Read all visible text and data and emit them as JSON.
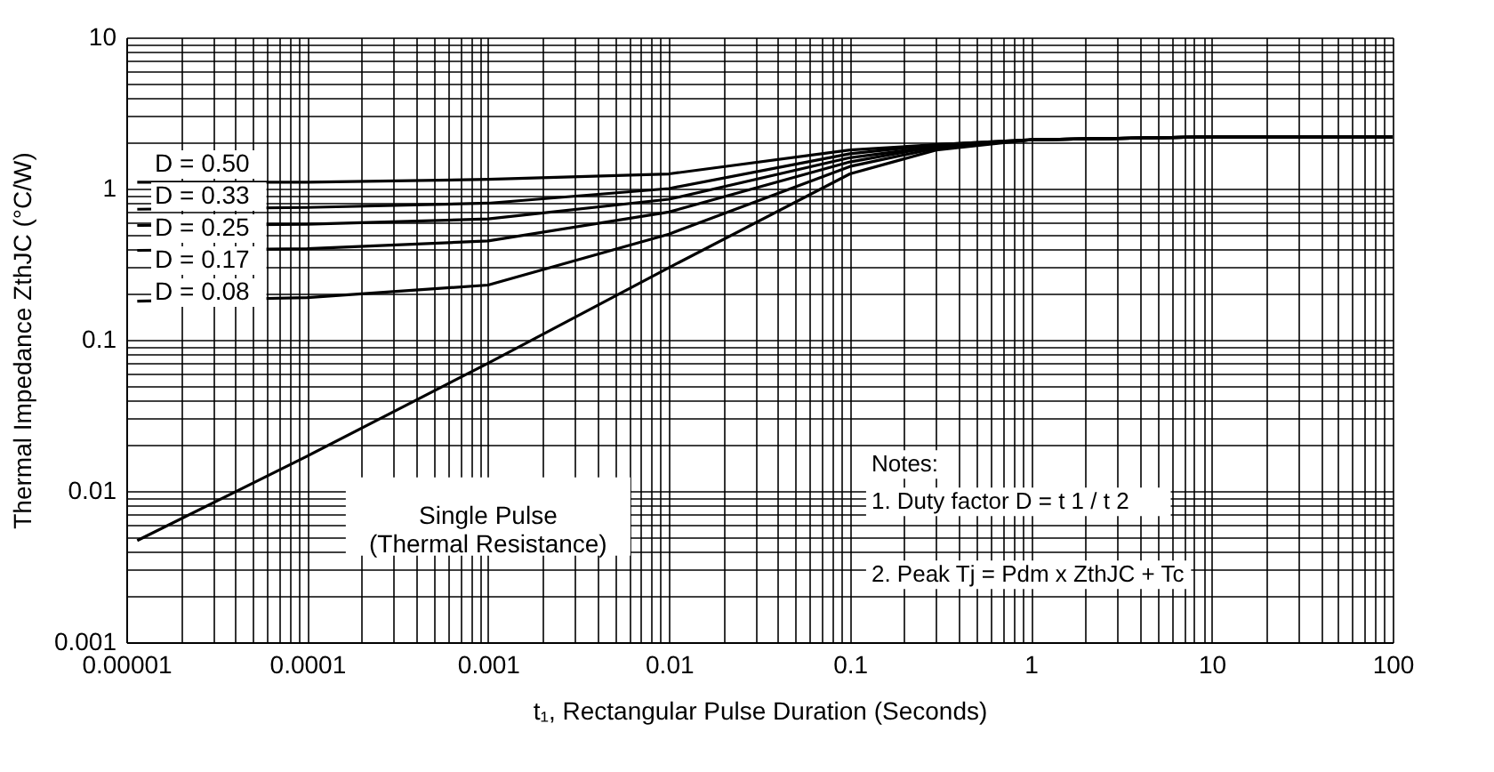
{
  "chart_data": {
    "type": "line",
    "xlabel": "t₁, Rectangular Pulse Duration (Seconds)",
    "ylabel": "Thermal Impedance ZthJC (°C/W)",
    "log": "xy",
    "grid": true,
    "legend": false,
    "line_style": "solid",
    "marker": "none",
    "xlim": [
      1e-05,
      100
    ],
    "ylim": [
      0.001,
      10
    ],
    "xticks": [
      {
        "value": 1e-05,
        "label": "0.00001"
      },
      {
        "value": 2e-05,
        "label": null
      },
      {
        "value": 3e-05,
        "label": null
      },
      {
        "value": 4e-05,
        "label": null
      },
      {
        "value": 5e-05,
        "label": null
      },
      {
        "value": 6e-05,
        "label": null
      },
      {
        "value": 7e-05,
        "label": null
      },
      {
        "value": 8e-05,
        "label": null
      },
      {
        "value": 9e-05,
        "label": null
      },
      0.0001,
      {
        "value": 0.0002,
        "label": null
      },
      {
        "value": 0.0003,
        "label": null
      },
      {
        "value": 0.0004,
        "label": null
      },
      {
        "value": 0.0005,
        "label": null
      },
      {
        "value": 0.0006,
        "label": null
      },
      {
        "value": 0.0007,
        "label": null
      },
      {
        "value": 0.0008,
        "label": null
      },
      {
        "value": 0.0009,
        "label": null
      },
      0.001,
      {
        "value": 0.002,
        "label": null
      },
      {
        "value": 0.003,
        "label": null
      },
      {
        "value": 0.004,
        "label": null
      },
      {
        "value": 0.005,
        "label": null
      },
      {
        "value": 0.006,
        "label": null
      },
      {
        "value": 0.007,
        "label": null
      },
      {
        "value": 0.008,
        "label": null
      },
      {
        "value": 0.009,
        "label": null
      },
      0.01,
      {
        "value": 0.02,
        "label": null
      },
      {
        "value": 0.03,
        "label": null
      },
      {
        "value": 0.04,
        "label": null
      },
      {
        "value": 0.05,
        "label": null
      },
      {
        "value": 0.06,
        "label": null
      },
      {
        "value": 0.07,
        "label": null
      },
      {
        "value": 0.08,
        "label": null
      },
      {
        "value": 0.09,
        "label": null
      },
      0.1,
      {
        "value": 0.2,
        "label": null
      },
      {
        "value": 0.3,
        "label": null
      },
      {
        "value": 0.4,
        "label": null
      },
      {
        "value": 0.5,
        "label": null
      },
      {
        "value": 0.6,
        "label": null
      },
      {
        "value": 0.7,
        "label": null
      },
      {
        "value": 0.8,
        "label": null
      },
      {
        "value": 0.9,
        "label": null
      },
      1,
      {
        "value": 2,
        "label": null
      },
      {
        "value": 3,
        "label": null
      },
      {
        "value": 4,
        "label": null
      },
      {
        "value": 5,
        "label": null
      },
      {
        "value": 6,
        "label": null
      },
      {
        "value": 7,
        "label": null
      },
      {
        "value": 8,
        "label": null
      },
      {
        "value": 9,
        "label": null
      },
      10,
      {
        "value": 20,
        "label": null
      },
      {
        "value": 30,
        "label": null
      },
      {
        "value": 40,
        "label": null
      },
      {
        "value": 50,
        "label": null
      },
      {
        "value": 60,
        "label": null
      },
      {
        "value": 70,
        "label": null
      },
      {
        "value": 80,
        "label": null
      },
      {
        "value": 90,
        "label": null
      },
      100
    ],
    "yticks": [
      0.001,
      {
        "value": 0.002,
        "label": null
      },
      {
        "value": 0.003,
        "label": null
      },
      {
        "value": 0.004,
        "label": null
      },
      {
        "value": 0.005,
        "label": null
      },
      {
        "value": 0.006,
        "label": null
      },
      {
        "value": 0.007,
        "label": null
      },
      {
        "value": 0.008,
        "label": null
      },
      {
        "value": 0.009,
        "label": null
      },
      0.01,
      {
        "value": 0.02,
        "label": null
      },
      {
        "value": 0.03,
        "label": null
      },
      {
        "value": 0.04,
        "label": null
      },
      {
        "value": 0.05,
        "label": null
      },
      {
        "value": 0.06,
        "label": null
      },
      {
        "value": 0.07,
        "label": null
      },
      {
        "value": 0.08,
        "label": null
      },
      {
        "value": 0.09,
        "label": null
      },
      0.1,
      {
        "value": 0.2,
        "label": null
      },
      {
        "value": 0.3,
        "label": null
      },
      {
        "value": 0.4,
        "label": null
      },
      {
        "value": 0.5,
        "label": null
      },
      {
        "value": 0.6,
        "label": null
      },
      {
        "value": 0.7,
        "label": null
      },
      {
        "value": 0.8,
        "label": null
      },
      {
        "value": 0.9,
        "label": null
      },
      1,
      {
        "value": 2,
        "label": null
      },
      {
        "value": 3,
        "label": null
      },
      {
        "value": 4,
        "label": null
      },
      {
        "value": 5,
        "label": null
      },
      {
        "value": 6,
        "label": null
      },
      {
        "value": 7,
        "label": null
      },
      {
        "value": 8,
        "label": null
      },
      {
        "value": 9,
        "label": null
      },
      10
    ],
    "x": [
      1.15e-05,
      0.0001,
      0.001,
      0.01,
      0.1,
      0.3,
      1,
      10,
      100
    ],
    "series": [
      {
        "name": "D = 0.50",
        "color": "#000000",
        "values": [
          1.1,
          1.1,
          1.15,
          1.25,
          1.8,
          1.95,
          2.1,
          2.2,
          2.2
        ]
      },
      {
        "name": "D = 0.33",
        "color": "#000000",
        "values": [
          0.73,
          0.75,
          0.8,
          1.0,
          1.7,
          1.95,
          2.1,
          2.2,
          2.2
        ]
      },
      {
        "name": "D = 0.25",
        "color": "#000000",
        "values": [
          0.57,
          0.58,
          0.63,
          0.85,
          1.6,
          1.9,
          2.1,
          2.2,
          2.2
        ]
      },
      {
        "name": "D = 0.17",
        "color": "#000000",
        "values": [
          0.39,
          0.4,
          0.45,
          0.7,
          1.5,
          1.9,
          2.1,
          2.2,
          2.2
        ]
      },
      {
        "name": "D = 0.08",
        "color": "#000000",
        "values": [
          0.18,
          0.19,
          0.23,
          0.5,
          1.4,
          1.85,
          2.1,
          2.2,
          2.2
        ]
      },
      {
        "name": "Single Pulse\n(Thermal Resistance)",
        "color": "#000000",
        "values": [
          0.0047,
          0.017,
          0.07,
          0.3,
          1.25,
          1.8,
          2.1,
          2.2,
          2.2
        ]
      }
    ],
    "annotations": [
      "Notes:",
      "1. Duty factor D =  t 1 / t 2",
      "2. Peak Tj = Pdm  x  ZthJC + Tc"
    ]
  }
}
